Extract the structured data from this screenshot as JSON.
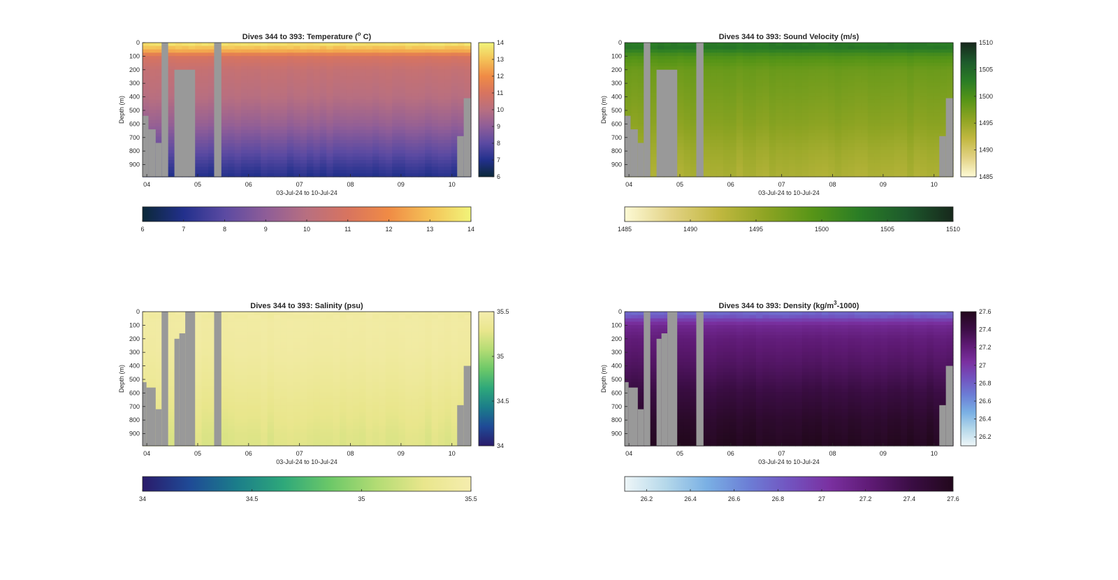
{
  "figure": {
    "panels": [
      {
        "id": "temperature",
        "title_main": "Dives 344 to 393: Temperature (",
        "title_sup": "o",
        "title_end": " C)",
        "xlabel": "03-Jul-24 to 10-Jul-24",
        "ylabel": "Depth (m)",
        "y_ticks": [
          "0",
          "100",
          "200",
          "300",
          "400",
          "500",
          "600",
          "700",
          "800",
          "900"
        ],
        "x_ticks": [
          "04",
          "05",
          "06",
          "07",
          "08",
          "09",
          "10"
        ],
        "side_colorbar_ticks": [
          "14",
          "13",
          "12",
          "11",
          "10",
          "9",
          "8",
          "7",
          "6"
        ],
        "bottom_colorbar_ticks": [
          "6",
          "7",
          "8",
          "9",
          "10",
          "11",
          "12",
          "13",
          "14"
        ],
        "colormap": [
          "#0b2838",
          "#22308c",
          "#5b4aa2",
          "#8e5d98",
          "#b86f80",
          "#d8745f",
          "#f08b45",
          "#f4c257",
          "#f1f47a"
        ]
      },
      {
        "id": "sound_velocity",
        "title_main": "Dives 344 to 393: Sound Velocity (m/s)",
        "title_sup": "",
        "title_end": "",
        "xlabel": "03-Jul-24 to 10-Jul-24",
        "ylabel": "Depth (m)",
        "y_ticks": [
          "0",
          "100",
          "200",
          "300",
          "400",
          "500",
          "600",
          "700",
          "800",
          "900"
        ],
        "x_ticks": [
          "04",
          "05",
          "06",
          "07",
          "08",
          "09",
          "10"
        ],
        "side_colorbar_ticks": [
          "1510",
          "1505",
          "1500",
          "1495",
          "1490",
          "1485"
        ],
        "bottom_colorbar_ticks": [
          "1485",
          "1490",
          "1495",
          "1500",
          "1505",
          "1510"
        ],
        "colormap": [
          "#fdfad5",
          "#e2d284",
          "#c1b840",
          "#8ea423",
          "#579517",
          "#2a7d25",
          "#1d5a2c",
          "#17281c"
        ]
      },
      {
        "id": "salinity",
        "title_main": "Dives 344 to 393: Salinity (psu)",
        "title_sup": "",
        "title_end": "",
        "xlabel": "03-Jul-24 to 10-Jul-24",
        "ylabel": "Depth (m)",
        "y_ticks": [
          "0",
          "100",
          "200",
          "300",
          "400",
          "500",
          "600",
          "700",
          "800",
          "900"
        ],
        "x_ticks": [
          "04",
          "05",
          "06",
          "07",
          "08",
          "09",
          "10"
        ],
        "side_colorbar_ticks": [
          "35.5",
          "35",
          "34.5",
          "34"
        ],
        "bottom_colorbar_ticks": [
          "34",
          "34.5",
          "35",
          "35.5"
        ],
        "colormap": [
          "#2a1b6b",
          "#1f4a96",
          "#1b7d8a",
          "#2ea87a",
          "#6cc868",
          "#b3dc74",
          "#e9e68c",
          "#f5edae"
        ]
      },
      {
        "id": "density",
        "title_main": "Dives 344 to 393: Density (kg/m",
        "title_sup": "3",
        "title_end": "-1000)",
        "xlabel": "03-Jul-24 to 10-Jul-24",
        "ylabel": "Depth (m)",
        "y_ticks": [
          "0",
          "100",
          "200",
          "300",
          "400",
          "500",
          "600",
          "700",
          "800",
          "900"
        ],
        "x_ticks": [
          "04",
          "05",
          "06",
          "07",
          "08",
          "09",
          "10"
        ],
        "side_colorbar_ticks": [
          "27.6",
          "27.4",
          "27.2",
          "27",
          "26.8",
          "26.6",
          "26.4",
          "26.2"
        ],
        "bottom_colorbar_ticks": [
          "26.2",
          "26.4",
          "26.6",
          "26.8",
          "27",
          "27.2",
          "27.4",
          "27.6"
        ],
        "colormap": [
          "#eef6f8",
          "#b5d8ea",
          "#7ab0e4",
          "#6c7fd6",
          "#7254c0",
          "#7a30a0",
          "#5e1a74",
          "#3a0d43",
          "#22081c"
        ]
      }
    ]
  },
  "chart_data": [
    {
      "type": "heatmap",
      "title": "Dives 344 to 393: Temperature (o C)",
      "xlabel": "03-Jul-24 to 10-Jul-24",
      "ylabel": "Depth (m)",
      "x_tick_labels": [
        "04",
        "05",
        "06",
        "07",
        "08",
        "09",
        "10"
      ],
      "y_range_m": [
        0,
        990
      ],
      "y_reversed": true,
      "y_ticks": [
        0,
        100,
        200,
        300,
        400,
        500,
        600,
        700,
        800,
        900
      ],
      "color_range": [
        6,
        14
      ],
      "colorbar_ticks": [
        6,
        7,
        8,
        9,
        10,
        11,
        12,
        13,
        14
      ],
      "profile_depth_m": [
        0,
        30,
        60,
        100,
        200,
        400,
        600,
        800,
        990
      ],
      "profile_values": [
        13.8,
        13.2,
        12.6,
        11.0,
        10.4,
        10.0,
        9.2,
        8.1,
        7.0
      ],
      "dive_count": 50
    },
    {
      "type": "heatmap",
      "title": "Dives 344 to 393: Sound Velocity (m/s)",
      "xlabel": "03-Jul-24 to 10-Jul-24",
      "ylabel": "Depth (m)",
      "x_tick_labels": [
        "04",
        "05",
        "06",
        "07",
        "08",
        "09",
        "10"
      ],
      "y_range_m": [
        0,
        990
      ],
      "y_reversed": true,
      "y_ticks": [
        0,
        100,
        200,
        300,
        400,
        500,
        600,
        700,
        800,
        900
      ],
      "color_range": [
        1485,
        1510
      ],
      "colorbar_ticks": [
        1485,
        1490,
        1495,
        1500,
        1505,
        1510
      ],
      "profile_depth_m": [
        0,
        40,
        100,
        200,
        400,
        600,
        800,
        990
      ],
      "profile_values": [
        1503,
        1503.5,
        1500,
        1498,
        1497,
        1496,
        1494.5,
        1493.5
      ],
      "dive_count": 50
    },
    {
      "type": "heatmap",
      "title": "Dives 344 to 393: Salinity (psu)",
      "xlabel": "03-Jul-24 to 10-Jul-24",
      "ylabel": "Depth (m)",
      "x_tick_labels": [
        "04",
        "05",
        "06",
        "07",
        "08",
        "09",
        "10"
      ],
      "y_range_m": [
        0,
        990
      ],
      "y_reversed": true,
      "y_ticks": [
        0,
        100,
        200,
        300,
        400,
        500,
        600,
        700,
        800,
        900
      ],
      "color_range": [
        34,
        35.5
      ],
      "colorbar_ticks": [
        34,
        34.5,
        35,
        35.5
      ],
      "profile_depth_m": [
        0,
        100,
        300,
        500,
        700,
        900,
        990
      ],
      "profile_values": [
        35.42,
        35.43,
        35.41,
        35.36,
        35.3,
        35.25,
        35.24
      ],
      "dive_count": 50
    },
    {
      "type": "heatmap",
      "title": "Dives 344 to 393: Density (kg/m3-1000)",
      "xlabel": "03-Jul-24 to 10-Jul-24",
      "ylabel": "Depth (m)",
      "x_tick_labels": [
        "04",
        "05",
        "06",
        "07",
        "08",
        "09",
        "10"
      ],
      "y_range_m": [
        0,
        990
      ],
      "y_reversed": true,
      "y_ticks": [
        0,
        100,
        200,
        300,
        400,
        500,
        600,
        700,
        800,
        900
      ],
      "color_range": [
        26.1,
        27.6
      ],
      "colorbar_ticks": [
        26.2,
        26.4,
        26.6,
        26.8,
        27,
        27.2,
        27.4,
        27.6
      ],
      "profile_depth_m": [
        0,
        30,
        60,
        100,
        200,
        400,
        600,
        800,
        990
      ],
      "profile_values": [
        26.75,
        26.8,
        26.95,
        27.1,
        27.2,
        27.3,
        27.42,
        27.52,
        27.58
      ],
      "dive_count": 50
    }
  ]
}
